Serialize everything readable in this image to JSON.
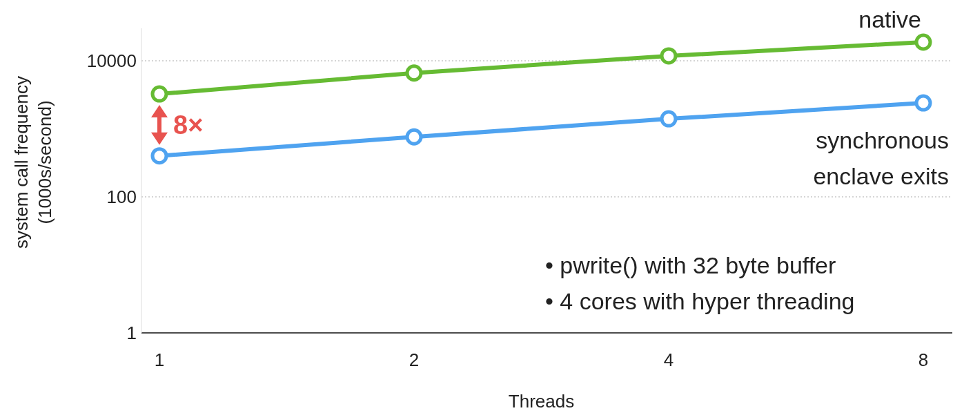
{
  "chart_data": {
    "type": "line",
    "xlabel": "Threads",
    "ylabel": "system call frequency\n(1000s/second)",
    "categories": [
      "1",
      "2",
      "4",
      "8"
    ],
    "series": [
      {
        "name": "native",
        "color": "#66bb33",
        "values": [
          3250,
          6600,
          11800,
          18800
        ]
      },
      {
        "name": "synchronous enclave exits",
        "color": "#4fa3f0",
        "values": [
          400,
          760,
          1400,
          2400
        ]
      }
    ],
    "log": "y",
    "ylim": [
      1,
      30000
    ],
    "yticks": [
      1,
      100,
      10000
    ],
    "grid": "y",
    "marker": "circle",
    "line_style": "solid",
    "annotations": [
      "8×",
      "• pwrite() with 32 byte buffer",
      "• 4 cores with hyper threading"
    ]
  }
}
